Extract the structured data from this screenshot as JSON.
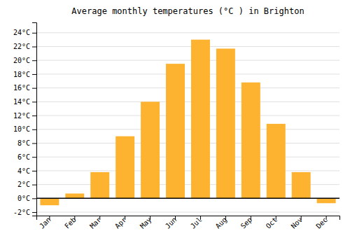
{
  "chart_data": {
    "type": "bar",
    "title": "Average monthly temperatures (°C ) in Brighton",
    "categories": [
      "Jan",
      "Feb",
      "Mar",
      "Apr",
      "May",
      "Jun",
      "Jul",
      "Aug",
      "Sep",
      "Oct",
      "Nov",
      "Dec"
    ],
    "values": [
      -1.0,
      0.7,
      3.8,
      9.0,
      14.0,
      19.5,
      23.0,
      21.7,
      16.8,
      10.8,
      3.8,
      -0.7
    ],
    "color": "#FDB32F",
    "ylim": [
      -2.5,
      25.5
    ],
    "yticks": [
      {
        "value": -2,
        "label": "-2°C"
      },
      {
        "value": 0,
        "label": "0°C"
      },
      {
        "value": 2,
        "label": "2°C"
      },
      {
        "value": 4,
        "label": "4°C"
      },
      {
        "value": 6,
        "label": "6°C"
      },
      {
        "value": 8,
        "label": "8°C"
      },
      {
        "value": 10,
        "label": "10°C"
      },
      {
        "value": 12,
        "label": "12°C"
      },
      {
        "value": 14,
        "label": "14°C"
      },
      {
        "value": 16,
        "label": "16°C"
      },
      {
        "value": 18,
        "label": "18°C"
      },
      {
        "value": 20,
        "label": "20°C"
      },
      {
        "value": 22,
        "label": "22°C"
      },
      {
        "value": 24,
        "label": "24°C"
      }
    ],
    "grid": true
  }
}
